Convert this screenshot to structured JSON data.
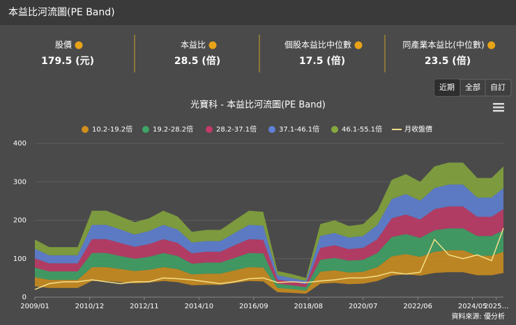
{
  "header": {
    "title": "本益比河流圖(PE Band)"
  },
  "stats": [
    {
      "label": "股價",
      "value": "179.5 (元)"
    },
    {
      "label": "本益比",
      "value": "28.5 (倍)"
    },
    {
      "label": "個股本益比中位數",
      "value": "17.5 (倍)"
    },
    {
      "label": "同產業本益比(中位數)",
      "value": "23.5 (倍)"
    }
  ],
  "buttons": [
    "近期",
    "全部",
    "自訂"
  ],
  "source": "資料來源: 優分析",
  "chart_data": {
    "type": "pe-band",
    "title": "光寶科 - 本益比河流圖(PE Band)",
    "x": [
      "2009/01",
      "2009/07",
      "2010/01",
      "2010/07",
      "2011/01",
      "2011/07",
      "2012/01",
      "2012/07",
      "2013/01",
      "2013/07",
      "2014/01",
      "2014/07",
      "2015/01",
      "2015/07",
      "2016/01",
      "2016/07",
      "2017/01",
      "2017/07",
      "2018/01",
      "2018/07",
      "2019/01",
      "2019/07",
      "2020/01",
      "2020/07",
      "2021/01",
      "2021/07",
      "2022/01",
      "2022/07",
      "2023/01",
      "2023/07",
      "2024/01",
      "2024/07",
      "2025/01",
      "2025/06"
    ],
    "xlim": [
      "2009/01",
      "2025/06"
    ],
    "xticks": [
      "2009/01",
      "2010/12",
      "2012/11",
      "2014/10",
      "2016/09",
      "2018/08",
      "2020/07",
      "2022/06",
      "2024/05",
      {
        "value": "2025/03",
        "label": "2025…"
      }
    ],
    "ylim": [
      0,
      400
    ],
    "yticks": [
      0,
      100,
      200,
      300,
      400
    ],
    "grid": true,
    "series": [
      {
        "name": "10.2-19.2倍",
        "color": "#d08f1c",
        "low": [
          28,
          24,
          24,
          24,
          42,
          42,
          39,
          36,
          38,
          42,
          39,
          31,
          32,
          32,
          37,
          42,
          41,
          13,
          11,
          9,
          35,
          37,
          34,
          35,
          42,
          56,
          59,
          56,
          63,
          65,
          65,
          57,
          57,
          63
        ],
        "high": [
          52,
          45,
          45,
          45,
          78,
          78,
          73,
          68,
          71,
          78,
          73,
          59,
          61,
          61,
          70,
          78,
          77,
          24,
          21,
          17,
          66,
          70,
          64,
          66,
          78,
          106,
          112,
          105,
          118,
          122,
          122,
          108,
          108,
          118
        ]
      },
      {
        "name": "19.2-28.2倍",
        "color": "#3ea566",
        "low": [
          52,
          45,
          45,
          45,
          78,
          78,
          73,
          68,
          71,
          78,
          73,
          59,
          61,
          61,
          70,
          78,
          77,
          24,
          21,
          17,
          66,
          70,
          64,
          66,
          78,
          106,
          112,
          105,
          118,
          122,
          122,
          108,
          108,
          118
        ],
        "high": [
          77,
          67,
          67,
          67,
          115,
          115,
          107,
          100,
          105,
          115,
          107,
          87,
          90,
          90,
          102,
          115,
          114,
          35,
          31,
          26,
          97,
          102,
          95,
          97,
          115,
          156,
          164,
          154,
          174,
          179,
          179,
          159,
          159,
          174
        ]
      },
      {
        "name": "28.2-37.1倍",
        "color": "#c23a68",
        "low": [
          77,
          67,
          67,
          67,
          115,
          115,
          107,
          100,
          105,
          115,
          107,
          87,
          90,
          90,
          102,
          115,
          114,
          35,
          31,
          26,
          97,
          102,
          95,
          97,
          115,
          156,
          164,
          154,
          174,
          179,
          179,
          159,
          159,
          174
        ],
        "high": [
          101,
          88,
          88,
          88,
          151,
          151,
          141,
          131,
          138,
          151,
          141,
          114,
          118,
          118,
          135,
          151,
          149,
          46,
          40,
          34,
          128,
          135,
          125,
          128,
          151,
          205,
          215,
          202,
          229,
          236,
          236,
          209,
          209,
          229
        ]
      },
      {
        "name": "37.1-46.1倍",
        "color": "#5f82d8",
        "low": [
          101,
          88,
          88,
          88,
          151,
          151,
          141,
          131,
          138,
          151,
          141,
          114,
          118,
          118,
          135,
          151,
          149,
          46,
          40,
          34,
          128,
          135,
          125,
          128,
          151,
          205,
          215,
          202,
          229,
          236,
          236,
          209,
          209,
          229
        ],
        "high": [
          126,
          109,
          109,
          109,
          188,
          188,
          176,
          163,
          172,
          188,
          176,
          142,
          146,
          146,
          167,
          188,
          186,
          57,
          50,
          42,
          159,
          167,
          155,
          159,
          188,
          255,
          268,
          251,
          284,
          293,
          293,
          259,
          259,
          284
        ]
      },
      {
        "name": "46.1-55.1倍",
        "color": "#86a83c",
        "low": [
          126,
          109,
          109,
          109,
          188,
          188,
          176,
          163,
          172,
          188,
          176,
          142,
          146,
          146,
          167,
          188,
          186,
          57,
          50,
          42,
          159,
          167,
          155,
          159,
          188,
          255,
          268,
          251,
          284,
          293,
          293,
          259,
          259,
          284
        ],
        "high": [
          150,
          130,
          130,
          130,
          225,
          225,
          210,
          195,
          205,
          225,
          210,
          170,
          175,
          175,
          200,
          225,
          222,
          68,
          60,
          50,
          190,
          200,
          185,
          190,
          225,
          305,
          320,
          300,
          340,
          350,
          350,
          310,
          310,
          340
        ]
      },
      {
        "name": "月收盤價",
        "color": "#f5e08a",
        "values": [
          20,
          35,
          40,
          40,
          45,
          40,
          35,
          40,
          40,
          50,
          48,
          45,
          40,
          35,
          40,
          48,
          50,
          38,
          40,
          38,
          42,
          45,
          50,
          50,
          55,
          65,
          60,
          65,
          150,
          110,
          100,
          110,
          95,
          179.5
        ]
      }
    ]
  }
}
